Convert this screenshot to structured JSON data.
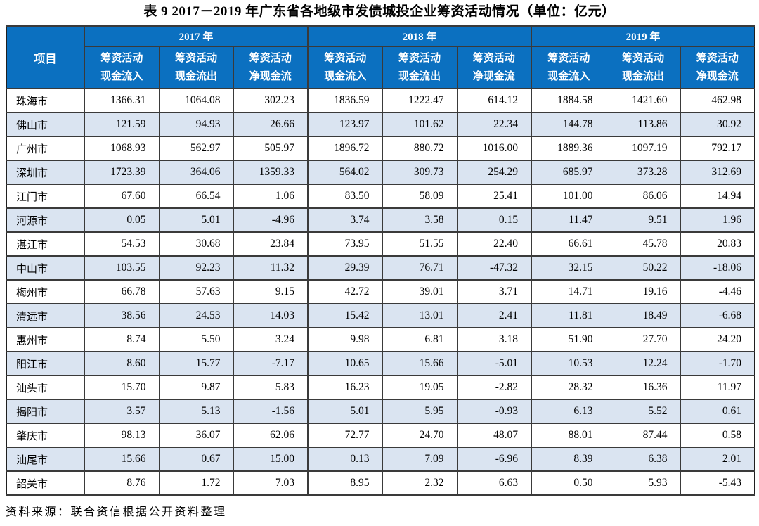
{
  "page": {
    "title": "表 9  2017－2019 年广东省各地级市发债城投企业筹资活动情况（单位：亿元）",
    "source_note": "资料来源：联合资信根据公开资料整理"
  },
  "table": {
    "corner_label": "项目",
    "year_groups": [
      {
        "label": "2017 年"
      },
      {
        "label": "2018 年"
      },
      {
        "label": "2019 年"
      }
    ],
    "sub_columns": [
      {
        "line1": "筹资活动",
        "line2": "现金流入"
      },
      {
        "line1": "筹资活动",
        "line2": "现金流出"
      },
      {
        "line1": "筹资活动",
        "line2": "净现金流"
      }
    ],
    "colors": {
      "header_bg": "#0B70C0",
      "header_text": "#FFFFFF",
      "row_alt_bg": "#DAE4F1",
      "border": "#3A3A3A"
    },
    "rows": [
      {
        "city": "珠海市",
        "values": [
          "1366.31",
          "1064.08",
          "302.23",
          "1836.59",
          "1222.47",
          "614.12",
          "1884.58",
          "1421.60",
          "462.98"
        ]
      },
      {
        "city": "佛山市",
        "values": [
          "121.59",
          "94.93",
          "26.66",
          "123.97",
          "101.62",
          "22.34",
          "144.78",
          "113.86",
          "30.92"
        ]
      },
      {
        "city": "广州市",
        "values": [
          "1068.93",
          "562.97",
          "505.97",
          "1896.72",
          "880.72",
          "1016.00",
          "1889.36",
          "1097.19",
          "792.17"
        ]
      },
      {
        "city": "深圳市",
        "values": [
          "1723.39",
          "364.06",
          "1359.33",
          "564.02",
          "309.73",
          "254.29",
          "685.97",
          "373.28",
          "312.69"
        ]
      },
      {
        "city": "江门市",
        "values": [
          "67.60",
          "66.54",
          "1.06",
          "83.50",
          "58.09",
          "25.41",
          "101.00",
          "86.06",
          "14.94"
        ]
      },
      {
        "city": "河源市",
        "values": [
          "0.05",
          "5.01",
          "-4.96",
          "3.74",
          "3.58",
          "0.15",
          "11.47",
          "9.51",
          "1.96"
        ]
      },
      {
        "city": "湛江市",
        "values": [
          "54.53",
          "30.68",
          "23.84",
          "73.95",
          "51.55",
          "22.40",
          "66.61",
          "45.78",
          "20.83"
        ]
      },
      {
        "city": "中山市",
        "values": [
          "103.55",
          "92.23",
          "11.32",
          "29.39",
          "76.71",
          "-47.32",
          "32.15",
          "50.22",
          "-18.06"
        ]
      },
      {
        "city": "梅州市",
        "values": [
          "66.78",
          "57.63",
          "9.15",
          "42.72",
          "39.01",
          "3.71",
          "14.71",
          "19.16",
          "-4.46"
        ]
      },
      {
        "city": "清远市",
        "values": [
          "38.56",
          "24.53",
          "14.03",
          "15.42",
          "13.01",
          "2.41",
          "11.81",
          "18.49",
          "-6.68"
        ]
      },
      {
        "city": "惠州市",
        "values": [
          "8.74",
          "5.50",
          "3.24",
          "9.98",
          "6.81",
          "3.18",
          "51.90",
          "27.70",
          "24.20"
        ]
      },
      {
        "city": "阳江市",
        "values": [
          "8.60",
          "15.77",
          "-7.17",
          "10.65",
          "15.66",
          "-5.01",
          "10.53",
          "12.24",
          "-1.70"
        ]
      },
      {
        "city": "汕头市",
        "values": [
          "15.70",
          "9.87",
          "5.83",
          "16.23",
          "19.05",
          "-2.82",
          "28.32",
          "16.36",
          "11.97"
        ]
      },
      {
        "city": "揭阳市",
        "values": [
          "3.57",
          "5.13",
          "-1.56",
          "5.01",
          "5.95",
          "-0.93",
          "6.13",
          "5.52",
          "0.61"
        ]
      },
      {
        "city": "肇庆市",
        "values": [
          "98.13",
          "36.07",
          "62.06",
          "72.77",
          "24.70",
          "48.07",
          "88.01",
          "87.44",
          "0.58"
        ]
      },
      {
        "city": "汕尾市",
        "values": [
          "15.66",
          "0.67",
          "15.00",
          "0.13",
          "7.09",
          "-6.96",
          "8.39",
          "6.38",
          "2.01"
        ]
      },
      {
        "city": "韶关市",
        "values": [
          "8.76",
          "1.72",
          "7.03",
          "8.95",
          "2.32",
          "6.63",
          "0.50",
          "5.93",
          "-5.43"
        ]
      }
    ]
  }
}
